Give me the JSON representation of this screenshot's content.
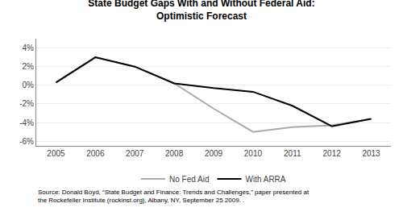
{
  "chart_data": {
    "type": "line",
    "title": "State Budget Gaps With and Without Federal Aid:\nOptimistic Forecast",
    "x": [
      2005,
      2006,
      2007,
      2008,
      2009,
      2010,
      2011,
      2012,
      2013
    ],
    "series": [
      {
        "name": "No Fed Aid",
        "color": "#aaaaaa",
        "values": [
          0.3,
          3.0,
          2.0,
          0.2,
          -2.5,
          -5.0,
          -4.5,
          -4.3,
          -3.6
        ]
      },
      {
        "name": "With ARRA",
        "color": "#000000",
        "values": [
          0.3,
          3.0,
          2.0,
          0.2,
          -0.3,
          -0.7,
          -2.2,
          -4.4,
          -3.6
        ]
      }
    ],
    "xlim": [
      2004.5,
      2013.5
    ],
    "xticks": [
      2005,
      2006,
      2007,
      2008,
      2009,
      2010,
      2011,
      2012,
      2013
    ],
    "ylim": [
      -6.5,
      5.0
    ],
    "yticks": [
      {
        "value": -6,
        "label": "-6%"
      },
      {
        "value": -4,
        "label": "-4%"
      },
      {
        "value": -2,
        "label": "-2%"
      },
      {
        "value": 0,
        "label": "0%"
      },
      {
        "value": 2,
        "label": "2%"
      },
      {
        "value": 4,
        "label": "4%"
      }
    ],
    "grid": true,
    "legend": "bottom",
    "annotations": [
      "Source: Donald Boyd, “State Budget and Finance: Trends and Challenges,” paper presented at\nthe Rockefeller Institute (rockinst.org), Albany, NY, September 25 2009. ."
    ]
  }
}
